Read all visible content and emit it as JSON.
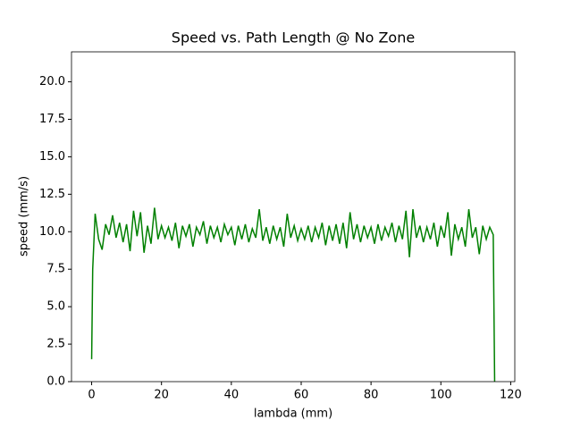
{
  "chart_data": {
    "type": "line",
    "title": "Speed vs. Path Length @ No Zone",
    "x_label": "lambda (mm)",
    "y_label": "speed (mm/s)",
    "x": [
      0,
      0.3,
      1,
      2,
      3,
      4,
      5,
      6,
      7,
      8,
      9,
      10,
      11,
      12,
      13,
      14,
      15,
      16,
      17,
      18,
      19,
      20,
      21,
      22,
      23,
      24,
      25,
      26,
      27,
      28,
      29,
      30,
      31,
      32,
      33,
      34,
      35,
      36,
      37,
      38,
      39,
      40,
      41,
      42,
      43,
      44,
      45,
      46,
      47,
      48,
      49,
      50,
      51,
      52,
      53,
      54,
      55,
      56,
      57,
      58,
      59,
      60,
      61,
      62,
      63,
      64,
      65,
      66,
      67,
      68,
      69,
      70,
      71,
      72,
      73,
      74,
      75,
      76,
      77,
      78,
      79,
      80,
      81,
      82,
      83,
      84,
      85,
      86,
      87,
      88,
      89,
      90,
      91,
      92,
      93,
      94,
      95,
      96,
      97,
      98,
      99,
      100,
      101,
      102,
      103,
      104,
      105,
      106,
      107,
      108,
      109,
      110,
      111,
      112,
      113,
      114,
      115,
      115.4
    ],
    "series": [
      {
        "name": "speed",
        "color": "#008000",
        "values": [
          1.5,
          7.5,
          11.2,
          9.5,
          8.8,
          10.5,
          9.8,
          11.1,
          9.6,
          10.6,
          9.3,
          10.5,
          8.7,
          11.4,
          9.7,
          11.3,
          8.6,
          10.4,
          9.2,
          11.6,
          9.5,
          10.4,
          9.6,
          10.3,
          9.4,
          10.6,
          8.9,
          10.4,
          9.7,
          10.5,
          9.0,
          10.3,
          9.8,
          10.7,
          9.2,
          10.4,
          9.6,
          10.3,
          9.3,
          10.5,
          9.8,
          10.3,
          9.1,
          10.4,
          9.5,
          10.5,
          9.3,
          10.2,
          9.6,
          11.5,
          9.4,
          10.3,
          9.2,
          10.4,
          9.5,
          10.3,
          9.0,
          11.2,
          9.6,
          10.4,
          9.4,
          10.2,
          9.5,
          10.4,
          9.3,
          10.3,
          9.6,
          10.6,
          9.1,
          10.4,
          9.4,
          10.5,
          9.2,
          10.6,
          8.9,
          11.3,
          9.5,
          10.5,
          9.3,
          10.4,
          9.6,
          10.3,
          9.2,
          10.5,
          9.4,
          10.3,
          9.7,
          10.6,
          9.3,
          10.4,
          9.5,
          11.4,
          8.3,
          11.5,
          9.6,
          10.4,
          9.3,
          10.3,
          9.5,
          10.6,
          9.0,
          10.4,
          9.6,
          11.3,
          8.4,
          10.5,
          9.5,
          10.3,
          9.0,
          11.5,
          9.6,
          10.3,
          8.5,
          10.4,
          9.5,
          10.3,
          9.8,
          0
        ]
      }
    ],
    "xlim": [
      -5.77,
      121.17
    ],
    "xticks": [
      0,
      20,
      40,
      60,
      80,
      100,
      120
    ],
    "ylim": [
      0,
      22
    ],
    "yticks": [
      {
        "value": 0,
        "label": "0.0"
      },
      2.5,
      {
        "value": 5,
        "label": "5.0"
      },
      7.5,
      {
        "value": 10,
        "label": "10.0"
      },
      12.5,
      {
        "value": 15,
        "label": "15.0"
      },
      17.5,
      {
        "value": 20,
        "label": "20.0"
      }
    ]
  }
}
